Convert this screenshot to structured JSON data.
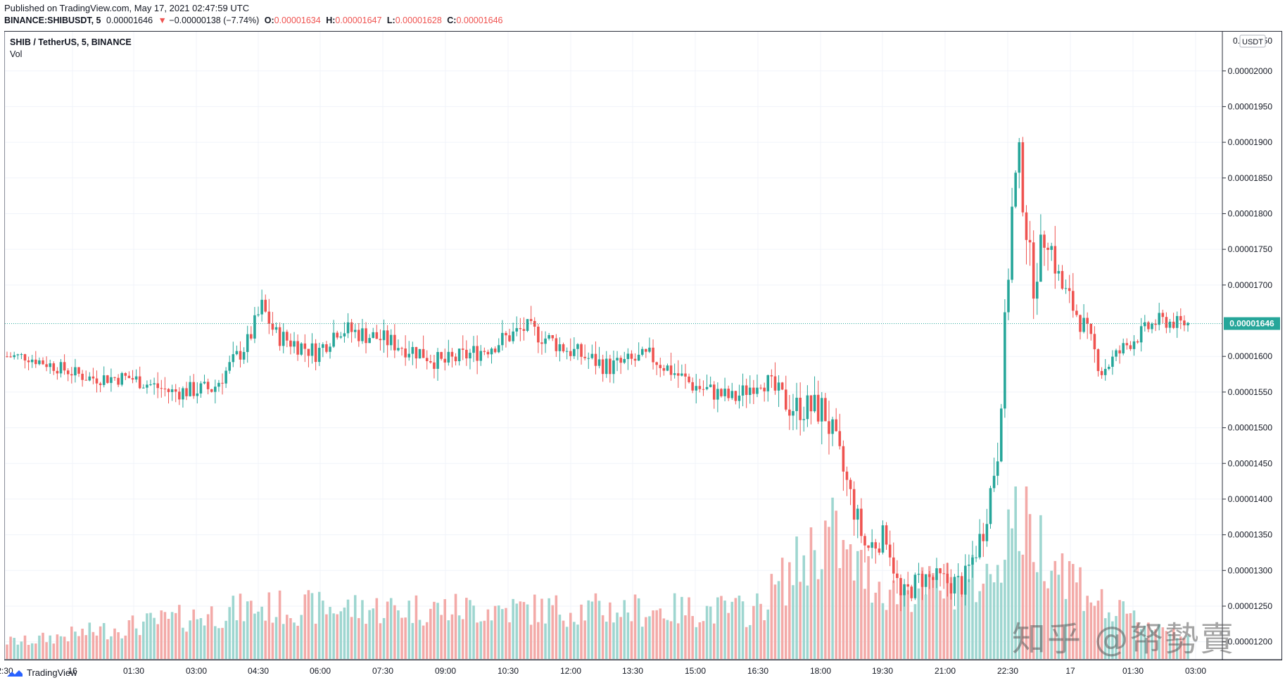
{
  "header": {
    "published": "Published on TradingView.com, May 17, 2021 02:47:59 UTC",
    "symbol": "BINANCE:SHIBUSDT, 5",
    "last_price": "0.00001646",
    "change_arrow": "▼",
    "change": "−0.00000138 (−7.74%)",
    "o_label": "O:",
    "o_value": "0.00001634",
    "h_label": "H:",
    "h_value": "0.00001647",
    "l_label": "L:",
    "l_value": "0.00001628",
    "c_label": "C:",
    "c_value": "0.00001646"
  },
  "legend": {
    "title": "SHIB / TetherUS, 5, BINANCE",
    "volume": "Vol"
  },
  "footer": {
    "brand": "TradingView"
  },
  "watermark": "知乎 @帑勢賣",
  "colors": {
    "up": "#26a69a",
    "down": "#ef5350",
    "up_vol": "#9ed6d0",
    "down_vol": "#f3aaa8",
    "grid": "#f0f3fa",
    "last_price_label": "#26a69a"
  },
  "chart_data": {
    "type": "candlestick",
    "title": "SHIB / TetherUS, 5, BINANCE",
    "currency": "USDT",
    "grid": true,
    "last_price": 1.646e-05,
    "ylim": [
      1.175e-05,
      2.055e-05
    ],
    "y_ticks": [
      "0.00002000",
      "0.00001950",
      "0.00001900",
      "0.00001850",
      "0.00001800",
      "0.00001750",
      "0.00001700",
      "0.00001600",
      "0.00001550",
      "0.00001500",
      "0.00001450",
      "0.00001400",
      "0.00001350",
      "0.00001300",
      "0.00001250",
      "0.00001200"
    ],
    "y_ticks_partial": [
      "0.0",
      "50"
    ],
    "x_ticks": [
      "2:30",
      "16",
      "01:30",
      "03:00",
      "04:30",
      "06:00",
      "07:30",
      "09:00",
      "10:30",
      "12:00",
      "13:30",
      "15:00",
      "16:30",
      "18:00",
      "19:30",
      "21:00",
      "22:30",
      "17",
      "01:30",
      "03:00"
    ],
    "series_anchors_close": [
      {
        "time": "23:00",
        "close": 1.6e-05
      },
      {
        "time": "00:30",
        "close": 1.57e-05
      },
      {
        "time": "01:30",
        "close": 1.57e-05
      },
      {
        "time": "02:30",
        "close": 1.55e-05
      },
      {
        "time": "03:30",
        "close": 1.555e-05
      },
      {
        "time": "04:20",
        "close": 1.62e-05
      },
      {
        "time": "04:40",
        "close": 1.67e-05
      },
      {
        "time": "05:00",
        "close": 1.63e-05
      },
      {
        "time": "06:00",
        "close": 1.605e-05
      },
      {
        "time": "06:30",
        "close": 1.64e-05
      },
      {
        "time": "07:30",
        "close": 1.625e-05
      },
      {
        "time": "08:30",
        "close": 1.605e-05
      },
      {
        "time": "09:00",
        "close": 1.59e-05
      },
      {
        "time": "10:00",
        "close": 1.61e-05
      },
      {
        "time": "11:00",
        "close": 1.64e-05
      },
      {
        "time": "12:00",
        "close": 1.61e-05
      },
      {
        "time": "13:00",
        "close": 1.585e-05
      },
      {
        "time": "14:00",
        "close": 1.6e-05
      },
      {
        "time": "15:00",
        "close": 1.56e-05
      },
      {
        "time": "16:00",
        "close": 1.54e-05
      },
      {
        "time": "16:40",
        "close": 1.57e-05
      },
      {
        "time": "17:20",
        "close": 1.53e-05
      },
      {
        "time": "18:10",
        "close": 1.525e-05
      },
      {
        "time": "18:40",
        "close": 1.43e-05
      },
      {
        "time": "19:10",
        "close": 1.33e-05
      },
      {
        "time": "19:40",
        "close": 1.35e-05
      },
      {
        "time": "20:00",
        "close": 1.26e-05
      },
      {
        "time": "20:30",
        "close": 1.29e-05
      },
      {
        "time": "21:30",
        "close": 1.28e-05
      },
      {
        "time": "22:00",
        "close": 1.36e-05
      },
      {
        "time": "22:20",
        "close": 1.47e-05
      },
      {
        "time": "22:40",
        "close": 1.8e-05
      },
      {
        "time": "22:50",
        "close": 1.88e-05
      },
      {
        "time": "23:10",
        "close": 1.7e-05
      },
      {
        "time": "23:30",
        "close": 1.78e-05
      },
      {
        "time": "23:50",
        "close": 1.7e-05
      },
      {
        "time": "00:20",
        "close": 1.65e-05
      },
      {
        "time": "00:50",
        "close": 1.58e-05
      },
      {
        "time": "01:30",
        "close": 1.62e-05
      },
      {
        "time": "02:10",
        "close": 1.65e-05
      },
      {
        "time": "02:45",
        "close": 1.646e-05
      }
    ],
    "volume_profile": [
      {
        "time": "23:00",
        "rel": 0.12
      },
      {
        "time": "04:30",
        "rel": 0.35
      },
      {
        "time": "16:30",
        "rel": 0.33
      },
      {
        "time": "18:20",
        "rel": 0.88
      },
      {
        "time": "18:40",
        "rel": 0.68
      },
      {
        "time": "19:50",
        "rel": 0.45
      },
      {
        "time": "22:10",
        "rel": 0.55
      },
      {
        "time": "22:40",
        "rel": 1.0
      },
      {
        "time": "23:10",
        "rel": 0.85
      },
      {
        "time": "01:00",
        "rel": 0.32
      },
      {
        "time": "02:45",
        "rel": 0.18
      }
    ]
  }
}
